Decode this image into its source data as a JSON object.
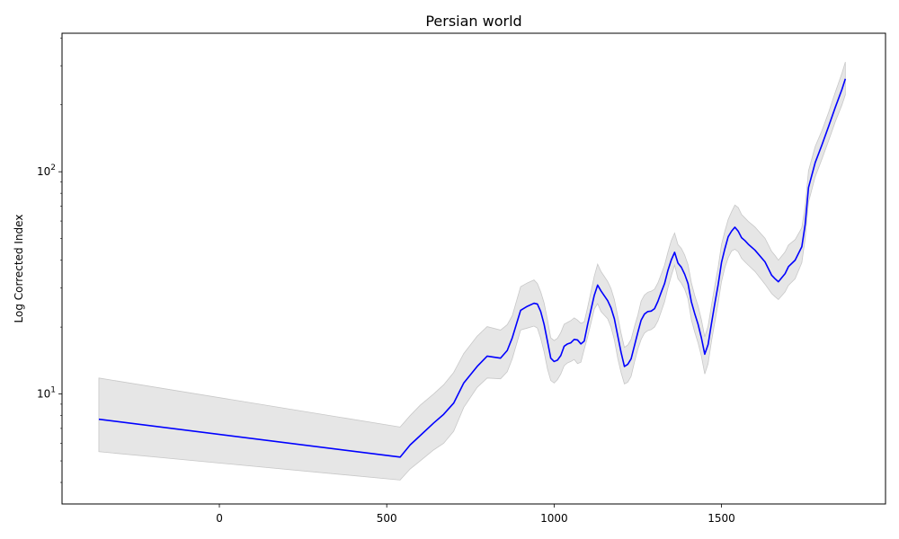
{
  "chart_data": {
    "type": "line",
    "title": "Persian world",
    "xlabel": "",
    "ylabel": "Log Corrected Index",
    "yscale": "log",
    "xlim": [
      -470,
      1990
    ],
    "ylim": [
      3.2,
      420
    ],
    "xticks": [
      0,
      500,
      1000,
      1500
    ],
    "xtick_labels": [
      "0",
      "500",
      "1000",
      "1500"
    ],
    "yticks": [
      10,
      100
    ],
    "ytick_labels": [
      "10^1",
      "10^2"
    ],
    "grid": false,
    "legend": "none",
    "colors": {
      "line": "#0000ff",
      "band": "#e6e6e6",
      "band_edge": "#c8c8c8"
    },
    "series": [
      {
        "x": [
          -360,
          540,
          570,
          600,
          640,
          670,
          700,
          730,
          770,
          800,
          840,
          860,
          875,
          900,
          920,
          940,
          950,
          960,
          970,
          980,
          990,
          1000,
          1010,
          1020,
          1030,
          1040,
          1050,
          1060,
          1070,
          1080,
          1090,
          1100,
          1120,
          1130,
          1140,
          1160,
          1170,
          1180,
          1190,
          1200,
          1210,
          1220,
          1230,
          1240,
          1250,
          1260,
          1270,
          1280,
          1290,
          1300,
          1310,
          1320,
          1330,
          1340,
          1350,
          1360,
          1370,
          1380,
          1390,
          1400,
          1410,
          1420,
          1430,
          1440,
          1450,
          1460,
          1470,
          1480,
          1490,
          1500,
          1510,
          1520,
          1530,
          1540,
          1550,
          1560,
          1570,
          1580,
          1600,
          1630,
          1650,
          1660,
          1670,
          1690,
          1700,
          1720,
          1740,
          1750,
          1760,
          1780,
          1800,
          1820,
          1840,
          1860,
          1870
        ],
        "y": [
          7.7,
          5.2,
          5.9,
          6.5,
          7.4,
          8.1,
          9.1,
          11.2,
          13.3,
          14.8,
          14.5,
          15.7,
          17.9,
          23.8,
          24.8,
          25.6,
          25.4,
          23.5,
          20.6,
          17.3,
          14.5,
          14.0,
          14.2,
          14.9,
          16.4,
          16.8,
          17.0,
          17.6,
          17.5,
          16.8,
          17.3,
          20.5,
          27.8,
          30.9,
          29.1,
          26.3,
          24.4,
          21.8,
          18.3,
          15.4,
          13.3,
          13.6,
          14.4,
          16.5,
          18.9,
          21.5,
          22.9,
          23.5,
          23.6,
          24.2,
          26.1,
          28.7,
          31.4,
          36.0,
          40.1,
          43.4,
          38.8,
          37.2,
          34.6,
          31.4,
          26.0,
          23.0,
          20.6,
          17.9,
          15.1,
          16.7,
          20.7,
          25.5,
          31.0,
          39.0,
          45.0,
          51.0,
          54.0,
          56.3,
          54.0,
          50.5,
          49.0,
          47.2,
          44.4,
          39.3,
          34.2,
          33.0,
          32.0,
          34.8,
          37.4,
          40.0,
          46.0,
          58.0,
          85.0,
          110.0,
          132.0,
          160.0,
          195.0,
          235.0,
          262.0
        ],
        "lower": [
          5.5,
          4.1,
          4.6,
          5.0,
          5.6,
          6.0,
          6.8,
          8.7,
          10.7,
          11.8,
          11.7,
          12.6,
          14.4,
          19.4,
          19.8,
          20.2,
          19.8,
          17.8,
          15.5,
          13.0,
          11.5,
          11.2,
          11.6,
          12.3,
          13.4,
          13.8,
          14.0,
          14.3,
          13.7,
          13.9,
          15.9,
          18.0,
          24.1,
          25.5,
          23.5,
          21.8,
          20.0,
          17.5,
          14.5,
          12.5,
          11.1,
          11.3,
          12.0,
          13.9,
          15.9,
          17.6,
          18.8,
          19.3,
          19.5,
          20.0,
          21.3,
          23.5,
          26.0,
          30.0,
          34.0,
          38.0,
          33.0,
          31.5,
          29.6,
          26.8,
          21.6,
          19.0,
          17.0,
          14.8,
          12.3,
          13.7,
          17.2,
          21.0,
          25.7,
          32.0,
          37.0,
          41.0,
          44.0,
          44.8,
          43.6,
          40.8,
          39.3,
          38.0,
          35.6,
          31.2,
          28.3,
          27.4,
          26.6,
          28.8,
          30.8,
          33.0,
          39.0,
          50.0,
          73.0,
          95.0,
          114.0,
          138.0,
          168.0,
          200.0,
          222.0
        ],
        "upper": [
          11.8,
          7.1,
          8.0,
          8.9,
          10.0,
          11.0,
          12.5,
          15.2,
          18.2,
          20.1,
          19.4,
          20.5,
          22.5,
          30.4,
          31.6,
          32.6,
          31.4,
          28.8,
          25.7,
          21.6,
          17.9,
          17.4,
          17.8,
          18.9,
          20.6,
          21.0,
          21.4,
          22.0,
          21.5,
          20.8,
          21.1,
          24.5,
          33.9,
          38.4,
          35.6,
          32.1,
          29.8,
          26.6,
          22.4,
          18.8,
          16.2,
          16.6,
          17.6,
          20.1,
          22.6,
          26.2,
          27.9,
          28.7,
          29.0,
          29.6,
          31.6,
          34.6,
          38.0,
          43.5,
          49.0,
          53.0,
          47.0,
          45.2,
          42.2,
          38.2,
          31.7,
          27.8,
          24.9,
          21.6,
          18.1,
          20.2,
          25.0,
          30.6,
          37.2,
          47.0,
          54.0,
          61.0,
          66.0,
          70.8,
          69.0,
          64.2,
          62.0,
          59.8,
          56.4,
          50.2,
          43.8,
          42.0,
          40.0,
          43.6,
          46.8,
          49.5,
          56.0,
          70.0,
          101.0,
          130.0,
          153.0,
          185.0,
          228.0,
          278.0,
          312.0
        ]
      }
    ]
  }
}
